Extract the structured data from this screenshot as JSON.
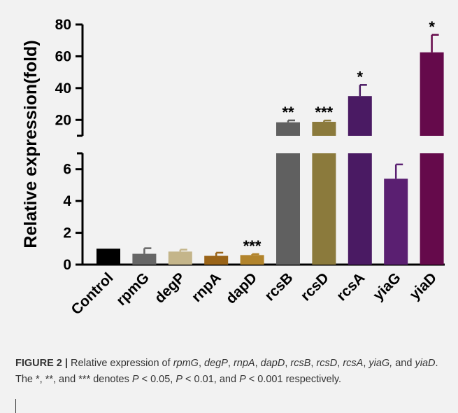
{
  "chart_data": {
    "type": "bar",
    "ylabel": "Relative expression(fold)",
    "categories": [
      "Control",
      "rpmG",
      "degP",
      "rnpA",
      "dapD",
      "rcsB",
      "rcsD",
      "rcsA",
      "yiaG",
      "yiaD"
    ],
    "values": [
      1.0,
      0.68,
      0.82,
      0.55,
      0.6,
      18.5,
      18.8,
      35.0,
      5.4,
      62.5
    ],
    "error": [
      0.0,
      0.35,
      0.12,
      0.2,
      0.06,
      1.2,
      0.8,
      7.0,
      0.9,
      11.0
    ],
    "significance": [
      "",
      "",
      "",
      "",
      "***",
      "**",
      "***",
      "*",
      "",
      "*"
    ],
    "colors": [
      "#000000",
      "#666666",
      "#c4b58a",
      "#9a6418",
      "#b2842c",
      "#606060",
      "#8b7a3c",
      "#4a1a63",
      "#5a1f71",
      "#650a4b"
    ],
    "axis": {
      "type": "broken",
      "lower_range": [
        0,
        7
      ],
      "upper_range": [
        10,
        80
      ],
      "lower_ticks": [
        "0",
        "2",
        "4",
        "6"
      ],
      "upper_ticks": [
        "20",
        "40",
        "60",
        "80"
      ]
    }
  },
  "caption": {
    "label": "FIGURE 2 |",
    "parts": [
      {
        "t": " Relative expression of ",
        "i": false
      },
      {
        "t": "rpmG",
        "i": true
      },
      {
        "t": ", ",
        "i": false
      },
      {
        "t": "degP",
        "i": true
      },
      {
        "t": ", ",
        "i": false
      },
      {
        "t": "rnpA",
        "i": true
      },
      {
        "t": ", ",
        "i": false
      },
      {
        "t": "dapD",
        "i": true
      },
      {
        "t": ", ",
        "i": false
      },
      {
        "t": "rcsB",
        "i": true
      },
      {
        "t": ", ",
        "i": false
      },
      {
        "t": "rcsD",
        "i": true
      },
      {
        "t": ", ",
        "i": false
      },
      {
        "t": "rcsA",
        "i": true
      },
      {
        "t": ", ",
        "i": false
      },
      {
        "t": "yiaG,",
        "i": true
      },
      {
        "t": " and ",
        "i": false
      },
      {
        "t": "yiaD",
        "i": true
      },
      {
        "t": ". The *, **, and *** denotes ",
        "i": false
      },
      {
        "t": "P",
        "i": true
      },
      {
        "t": " < 0.05, ",
        "i": false
      },
      {
        "t": "P",
        "i": true
      },
      {
        "t": " < 0.01, and ",
        "i": false
      },
      {
        "t": "P",
        "i": true
      },
      {
        "t": " < 0.001 respectively.",
        "i": false
      }
    ]
  }
}
